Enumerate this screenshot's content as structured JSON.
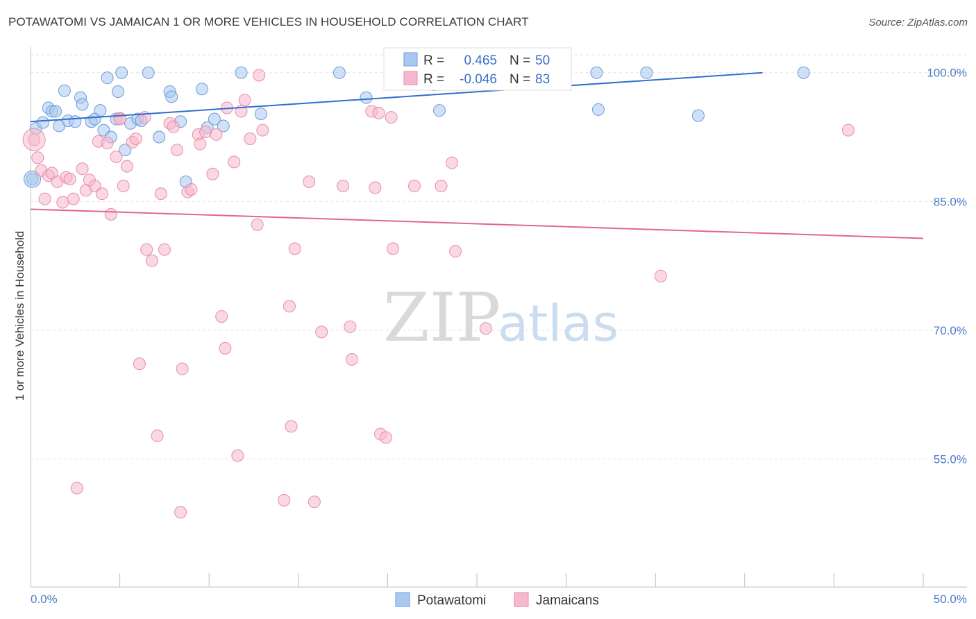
{
  "title": "POTAWATOMI VS JAMAICAN 1 OR MORE VEHICLES IN HOUSEHOLD CORRELATION CHART",
  "source": "Source: ZipAtlas.com",
  "watermark": {
    "zip": "ZIP",
    "atlas": "atlas"
  },
  "legend": {
    "r_label": "R =",
    "n_label": "N =",
    "rows": [
      {
        "r": "0.465",
        "n": "50",
        "color": "#a9c8f0"
      },
      {
        "r": "-0.046",
        "n": "83",
        "color": "#f5b8cc"
      }
    ]
  },
  "bottom_legend": [
    {
      "label": "Potawatomi",
      "color": "#a9c8f0"
    },
    {
      "label": "Jamaicans",
      "color": "#f5b8cc"
    }
  ],
  "chart_data": {
    "type": "scatter",
    "title": "POTAWATOMI VS JAMAICAN 1 OR MORE VEHICLES IN HOUSEHOLD CORRELATION CHART",
    "xlabel": "",
    "ylabel": "1 or more Vehicles in Household",
    "xlim": [
      0,
      50
    ],
    "ylim": [
      40,
      102
    ],
    "x_tick_labels": [
      "0.0%",
      "50.0%"
    ],
    "y_ticks": [
      55,
      70,
      85,
      100
    ],
    "y_tick_labels": [
      "55.0%",
      "70.0%",
      "85.0%",
      "100.0%"
    ],
    "grid": "horizontal dashed",
    "legend_position": "top-center",
    "series": [
      {
        "name": "Potawatomi",
        "color": "#a9c8f0",
        "stroke": "#6a9bd8",
        "trend": {
          "x": [
            0,
            41
          ],
          "y": [
            94.3,
            100.0
          ],
          "color": "#2f6fce"
        },
        "points": [
          [
            0.1,
            87.6
          ],
          [
            0.3,
            93.5
          ],
          [
            0.7,
            94.2
          ],
          [
            1.0,
            95.9
          ],
          [
            1.2,
            95.5
          ],
          [
            1.4,
            95.5
          ],
          [
            1.6,
            93.8
          ],
          [
            1.9,
            97.9
          ],
          [
            2.1,
            94.4
          ],
          [
            2.5,
            94.3
          ],
          [
            2.8,
            97.1
          ],
          [
            2.9,
            96.3
          ],
          [
            3.4,
            94.3
          ],
          [
            3.6,
            94.6
          ],
          [
            3.9,
            95.6
          ],
          [
            4.1,
            93.3
          ],
          [
            4.3,
            99.4
          ],
          [
            4.5,
            92.5
          ],
          [
            4.8,
            94.6
          ],
          [
            4.9,
            97.8
          ],
          [
            5.1,
            100.0
          ],
          [
            5.3,
            91.0
          ],
          [
            5.6,
            94.1
          ],
          [
            6.0,
            94.6
          ],
          [
            6.2,
            94.4
          ],
          [
            6.6,
            100.0
          ],
          [
            7.2,
            92.5
          ],
          [
            7.8,
            97.8
          ],
          [
            7.9,
            97.2
          ],
          [
            8.4,
            94.3
          ],
          [
            8.7,
            87.3
          ],
          [
            9.6,
            98.1
          ],
          [
            9.9,
            93.6
          ],
          [
            10.3,
            94.6
          ],
          [
            10.8,
            93.8
          ],
          [
            11.8,
            100.0
          ],
          [
            12.9,
            95.2
          ],
          [
            17.3,
            100.0
          ],
          [
            18.8,
            97.1
          ],
          [
            20.5,
            100.0
          ],
          [
            22.6,
            98.6
          ],
          [
            22.9,
            95.6
          ],
          [
            25.2,
            100.0
          ],
          [
            26.2,
            100.0
          ],
          [
            26.7,
            99.6
          ],
          [
            31.7,
            100.0
          ],
          [
            31.8,
            95.7
          ],
          [
            34.5,
            100.0
          ],
          [
            37.4,
            95.0
          ],
          [
            43.3,
            100.0
          ]
        ]
      },
      {
        "name": "Jamaicans",
        "color": "#f5b8cc",
        "stroke": "#e98aa8",
        "trend": {
          "x": [
            0,
            50
          ],
          "y": [
            84.1,
            80.7
          ],
          "color": "#e0668f"
        },
        "points": [
          [
            0.2,
            92.2
          ],
          [
            0.4,
            90.1
          ],
          [
            0.6,
            88.6
          ],
          [
            0.8,
            85.3
          ],
          [
            1.0,
            88.0
          ],
          [
            1.2,
            88.3
          ],
          [
            1.5,
            87.3
          ],
          [
            1.8,
            84.9
          ],
          [
            2.0,
            87.8
          ],
          [
            2.2,
            87.6
          ],
          [
            2.4,
            85.3
          ],
          [
            2.9,
            88.8
          ],
          [
            3.1,
            86.3
          ],
          [
            3.3,
            87.5
          ],
          [
            3.6,
            86.8
          ],
          [
            3.8,
            92.0
          ],
          [
            4.0,
            85.9
          ],
          [
            4.3,
            91.8
          ],
          [
            4.5,
            83.5
          ],
          [
            4.8,
            90.2
          ],
          [
            5.0,
            94.7
          ],
          [
            5.2,
            86.8
          ],
          [
            5.4,
            89.1
          ],
          [
            5.7,
            91.9
          ],
          [
            5.9,
            92.3
          ],
          [
            6.4,
            94.8
          ],
          [
            6.5,
            79.4
          ],
          [
            6.8,
            78.1
          ],
          [
            7.3,
            85.9
          ],
          [
            7.5,
            79.4
          ],
          [
            7.8,
            94.1
          ],
          [
            8.0,
            93.7
          ],
          [
            8.2,
            91.0
          ],
          [
            8.8,
            86.1
          ],
          [
            9.0,
            86.4
          ],
          [
            9.4,
            92.8
          ],
          [
            9.5,
            91.7
          ],
          [
            9.8,
            93.1
          ],
          [
            10.2,
            88.2
          ],
          [
            10.4,
            92.8
          ],
          [
            10.7,
            71.6
          ],
          [
            10.9,
            67.9
          ],
          [
            11.0,
            95.9
          ],
          [
            11.4,
            89.6
          ],
          [
            11.6,
            55.4
          ],
          [
            11.8,
            95.5
          ],
          [
            12.0,
            96.8
          ],
          [
            12.3,
            92.3
          ],
          [
            12.7,
            82.3
          ],
          [
            12.8,
            99.7
          ],
          [
            13.0,
            93.3
          ],
          [
            14.2,
            50.2
          ],
          [
            14.5,
            72.8
          ],
          [
            14.6,
            58.8
          ],
          [
            14.8,
            79.5
          ],
          [
            15.6,
            87.3
          ],
          [
            15.9,
            50.0
          ],
          [
            16.3,
            69.8
          ],
          [
            17.5,
            86.8
          ],
          [
            17.9,
            70.4
          ],
          [
            18.0,
            66.6
          ],
          [
            19.1,
            95.5
          ],
          [
            19.3,
            86.6
          ],
          [
            19.5,
            95.3
          ],
          [
            19.6,
            57.9
          ],
          [
            19.9,
            57.5
          ],
          [
            20.2,
            94.8
          ],
          [
            20.3,
            79.5
          ],
          [
            21.5,
            86.8
          ],
          [
            23.0,
            86.8
          ],
          [
            23.6,
            89.5
          ],
          [
            23.8,
            79.2
          ],
          [
            25.5,
            70.2
          ],
          [
            25.8,
            99.7
          ],
          [
            26.0,
            99.9
          ],
          [
            35.3,
            76.3
          ],
          [
            45.8,
            93.3
          ],
          [
            2.6,
            51.6
          ],
          [
            6.1,
            66.1
          ],
          [
            7.1,
            57.7
          ],
          [
            8.5,
            65.5
          ],
          [
            8.4,
            48.8
          ],
          [
            5.0,
            94.6
          ]
        ]
      }
    ]
  }
}
